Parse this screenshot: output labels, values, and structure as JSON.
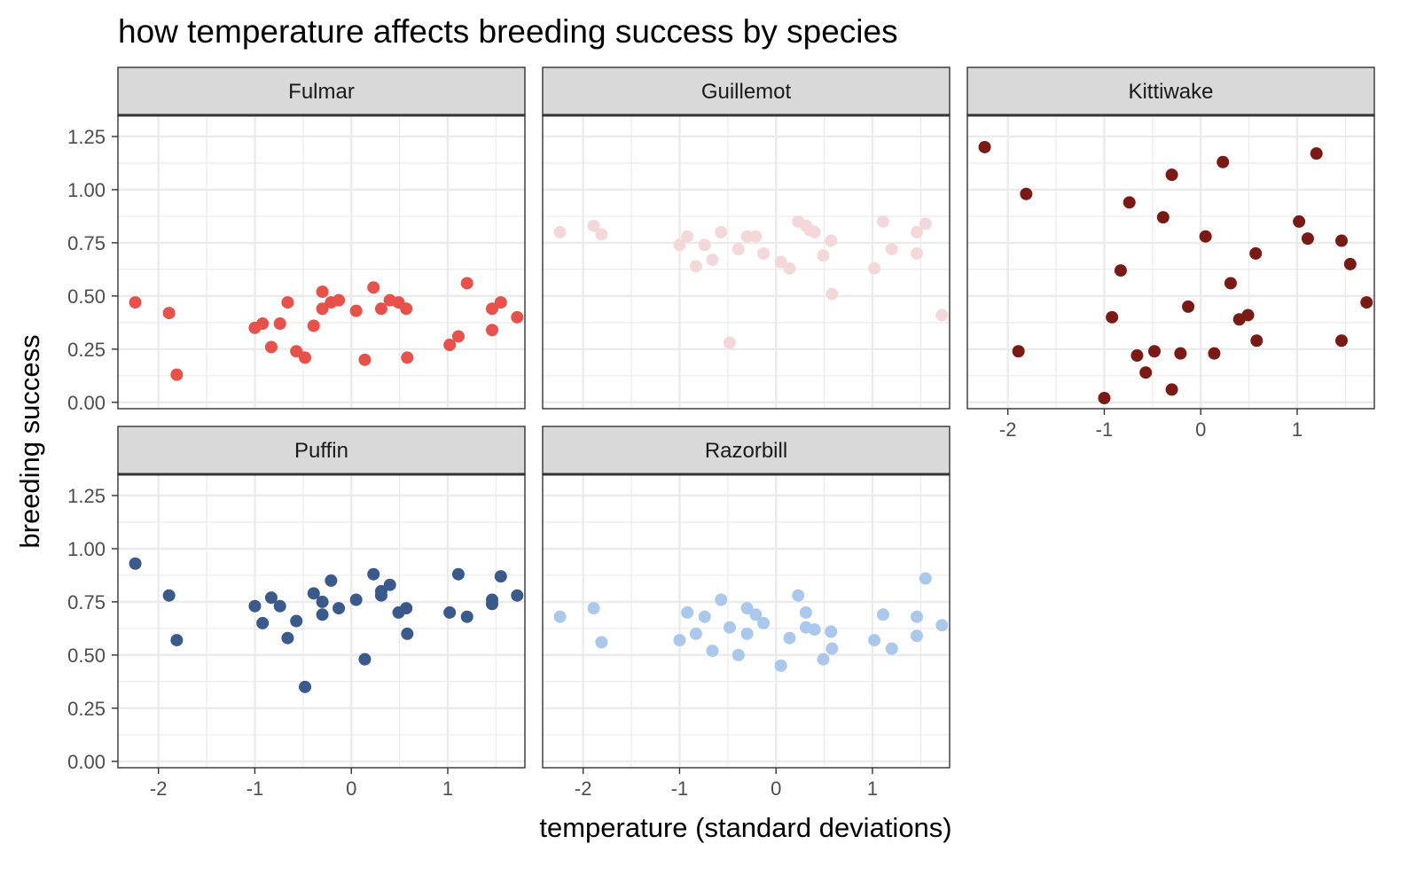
{
  "chart_data": {
    "type": "scatter",
    "title": "how temperature affects breeding success by species",
    "xlabel": "temperature (standard deviations)",
    "ylabel": "breeding success",
    "xlim": [
      -2.42,
      1.8
    ],
    "ylim": [
      -0.03,
      1.35
    ],
    "x_ticks": [
      -2,
      -1,
      0,
      1
    ],
    "x_tick_labels": [
      "-2",
      "-1",
      "0",
      "1"
    ],
    "y_ticks": [
      0,
      0.25,
      0.5,
      0.75,
      1,
      1.25
    ],
    "y_tick_labels": [
      "0.00",
      "0.25",
      "0.50",
      "0.75",
      "1.00",
      "1.25"
    ],
    "grid": true,
    "legend": "none",
    "panels": [
      {
        "name": "Fulmar",
        "color": "#e8504a",
        "points": [
          [
            -2.24,
            0.47
          ],
          [
            -1.89,
            0.42
          ],
          [
            -1.81,
            0.13
          ],
          [
            -1.0,
            0.35
          ],
          [
            -0.92,
            0.37
          ],
          [
            -0.83,
            0.26
          ],
          [
            -0.74,
            0.37
          ],
          [
            -0.66,
            0.47
          ],
          [
            -0.57,
            0.24
          ],
          [
            -0.48,
            0.21
          ],
          [
            -0.39,
            0.36
          ],
          [
            -0.3,
            0.44
          ],
          [
            -0.3,
            0.52
          ],
          [
            -0.21,
            0.47
          ],
          [
            -0.13,
            0.48
          ],
          [
            0.05,
            0.43
          ],
          [
            0.14,
            0.2
          ],
          [
            0.23,
            0.54
          ],
          [
            0.31,
            0.44
          ],
          [
            0.4,
            0.48
          ],
          [
            0.49,
            0.47
          ],
          [
            0.57,
            0.44
          ],
          [
            0.58,
            0.21
          ],
          [
            1.02,
            0.27
          ],
          [
            1.11,
            0.31
          ],
          [
            1.2,
            0.56
          ],
          [
            1.46,
            0.44
          ],
          [
            1.46,
            0.34
          ],
          [
            1.55,
            0.47
          ],
          [
            1.72,
            0.4
          ]
        ]
      },
      {
        "name": "Guillemot",
        "color": "#f4d8d9",
        "points": [
          [
            -2.24,
            0.8
          ],
          [
            -1.89,
            0.83
          ],
          [
            -1.81,
            0.79
          ],
          [
            -1.0,
            0.74
          ],
          [
            -0.92,
            0.78
          ],
          [
            -0.83,
            0.64
          ],
          [
            -0.74,
            0.74
          ],
          [
            -0.66,
            0.67
          ],
          [
            -0.57,
            0.8
          ],
          [
            -0.48,
            0.28
          ],
          [
            -0.39,
            0.72
          ],
          [
            -0.3,
            0.78
          ],
          [
            -0.21,
            0.78
          ],
          [
            -0.13,
            0.7
          ],
          [
            0.05,
            0.66
          ],
          [
            0.14,
            0.63
          ],
          [
            0.23,
            0.85
          ],
          [
            0.31,
            0.83
          ],
          [
            0.35,
            0.81
          ],
          [
            0.4,
            0.8
          ],
          [
            0.49,
            0.69
          ],
          [
            0.57,
            0.76
          ],
          [
            0.58,
            0.51
          ],
          [
            1.02,
            0.63
          ],
          [
            1.11,
            0.85
          ],
          [
            1.2,
            0.72
          ],
          [
            1.46,
            0.8
          ],
          [
            1.46,
            0.7
          ],
          [
            1.55,
            0.84
          ],
          [
            1.72,
            0.41
          ]
        ]
      },
      {
        "name": "Kittiwake",
        "color": "#7b1a14",
        "points": [
          [
            -2.24,
            1.2
          ],
          [
            -1.89,
            0.24
          ],
          [
            -1.81,
            0.98
          ],
          [
            -1.0,
            0.02
          ],
          [
            -0.92,
            0.4
          ],
          [
            -0.83,
            0.62
          ],
          [
            -0.74,
            0.94
          ],
          [
            -0.66,
            0.22
          ],
          [
            -0.57,
            0.14
          ],
          [
            -0.48,
            0.24
          ],
          [
            -0.39,
            0.87
          ],
          [
            -0.3,
            1.07
          ],
          [
            -0.3,
            0.06
          ],
          [
            -0.21,
            0.23
          ],
          [
            -0.13,
            0.45
          ],
          [
            0.05,
            0.78
          ],
          [
            0.14,
            0.23
          ],
          [
            0.23,
            1.13
          ],
          [
            0.31,
            0.56
          ],
          [
            0.4,
            0.39
          ],
          [
            0.49,
            0.41
          ],
          [
            0.57,
            0.7
          ],
          [
            0.58,
            0.29
          ],
          [
            1.02,
            0.85
          ],
          [
            1.11,
            0.77
          ],
          [
            1.2,
            1.17
          ],
          [
            1.46,
            0.76
          ],
          [
            1.46,
            0.29
          ],
          [
            1.55,
            0.65
          ],
          [
            1.72,
            0.47
          ]
        ]
      },
      {
        "name": "Puffin",
        "color": "#3a5a8c",
        "points": [
          [
            -2.24,
            0.93
          ],
          [
            -1.89,
            0.78
          ],
          [
            -1.81,
            0.57
          ],
          [
            -1.0,
            0.73
          ],
          [
            -0.92,
            0.65
          ],
          [
            -0.83,
            0.77
          ],
          [
            -0.74,
            0.73
          ],
          [
            -0.66,
            0.58
          ],
          [
            -0.57,
            0.66
          ],
          [
            -0.48,
            0.35
          ],
          [
            -0.39,
            0.79
          ],
          [
            -0.3,
            0.69
          ],
          [
            -0.3,
            0.75
          ],
          [
            -0.21,
            0.85
          ],
          [
            -0.13,
            0.72
          ],
          [
            0.05,
            0.76
          ],
          [
            0.14,
            0.48
          ],
          [
            0.23,
            0.88
          ],
          [
            0.31,
            0.78
          ],
          [
            0.31,
            0.8
          ],
          [
            0.4,
            0.83
          ],
          [
            0.49,
            0.7
          ],
          [
            0.57,
            0.72
          ],
          [
            0.58,
            0.6
          ],
          [
            1.02,
            0.7
          ],
          [
            1.11,
            0.88
          ],
          [
            1.2,
            0.68
          ],
          [
            1.46,
            0.76
          ],
          [
            1.46,
            0.74
          ],
          [
            1.55,
            0.87
          ],
          [
            1.72,
            0.78
          ]
        ]
      },
      {
        "name": "Razorbill",
        "color": "#a9c8ec",
        "points": [
          [
            -2.24,
            0.68
          ],
          [
            -1.89,
            0.72
          ],
          [
            -1.81,
            0.56
          ],
          [
            -1.0,
            0.57
          ],
          [
            -0.92,
            0.7
          ],
          [
            -0.83,
            0.6
          ],
          [
            -0.74,
            0.68
          ],
          [
            -0.66,
            0.52
          ],
          [
            -0.57,
            0.76
          ],
          [
            -0.48,
            0.63
          ],
          [
            -0.39,
            0.5
          ],
          [
            -0.3,
            0.72
          ],
          [
            -0.3,
            0.6
          ],
          [
            -0.21,
            0.69
          ],
          [
            -0.13,
            0.65
          ],
          [
            0.05,
            0.45
          ],
          [
            0.14,
            0.58
          ],
          [
            0.23,
            0.78
          ],
          [
            0.31,
            0.7
          ],
          [
            0.31,
            0.63
          ],
          [
            0.4,
            0.62
          ],
          [
            0.49,
            0.48
          ],
          [
            0.57,
            0.61
          ],
          [
            0.58,
            0.53
          ],
          [
            1.02,
            0.57
          ],
          [
            1.11,
            0.69
          ],
          [
            1.2,
            0.53
          ],
          [
            1.46,
            0.68
          ],
          [
            1.46,
            0.59
          ],
          [
            1.55,
            0.86
          ],
          [
            1.72,
            0.64
          ]
        ]
      }
    ]
  }
}
